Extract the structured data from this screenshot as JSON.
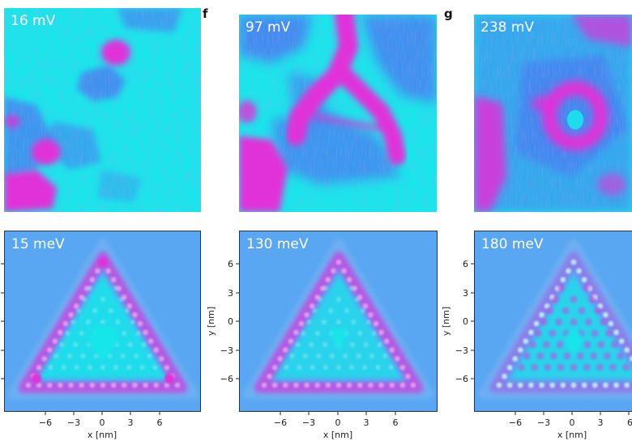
{
  "panel_labels": {
    "f": "f",
    "g": "g"
  },
  "experimental": [
    {
      "energy": "16 mV"
    },
    {
      "energy": "97 mV"
    },
    {
      "energy": "238 mV"
    }
  ],
  "simulated": [
    {
      "energy": "15 meV"
    },
    {
      "energy": "130 meV"
    },
    {
      "energy": "180 meV"
    }
  ],
  "axes": {
    "xlabel": "x [nm]",
    "ylabel": "y [nm]",
    "x_ticks": [
      "−6",
      "−3",
      "0",
      "3",
      "6"
    ],
    "y_ticks": [
      "6",
      "3",
      "0",
      "−3",
      "−6"
    ]
  },
  "colors": {
    "cyan": "#19e6ea",
    "blue": "#4d74f0",
    "magenta": "#e130d9",
    "sim_bg": "#59a7f2"
  }
}
